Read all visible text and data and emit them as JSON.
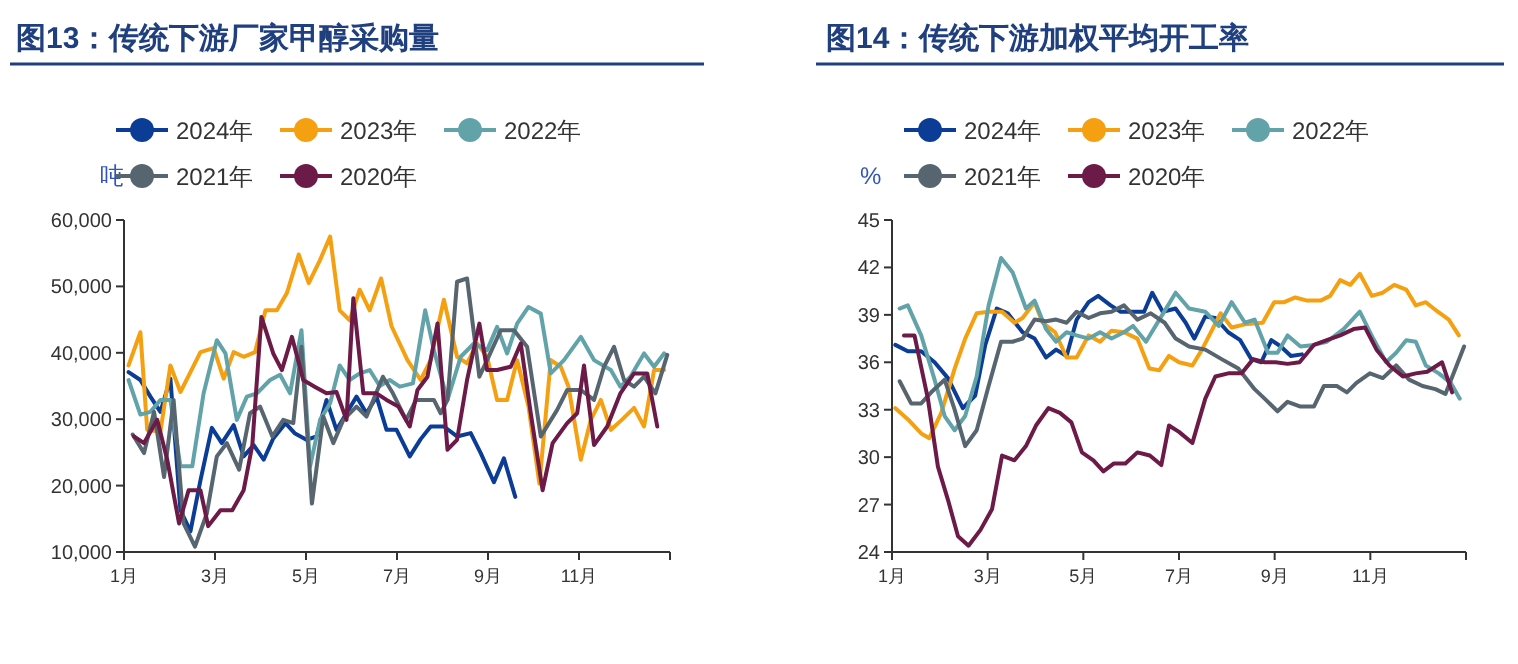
{
  "chart_data": [
    {
      "type": "line",
      "title": "图13：传统下游厂家甲醇采购量",
      "ylabel": "吨",
      "legend": "top",
      "grid": false,
      "xlim": [
        1,
        13
      ],
      "xticks": [
        {
          "value": 1,
          "label": "1月"
        },
        {
          "value": 3,
          "label": "3月"
        },
        {
          "value": 5,
          "label": "5月"
        },
        {
          "value": 7,
          "label": "7月"
        },
        {
          "value": 9,
          "label": "9月"
        },
        {
          "value": 11,
          "label": "11月"
        },
        {
          "value": 13,
          "label": null
        }
      ],
      "ylim": [
        10000,
        60000
      ],
      "yticks": [
        {
          "value": 10000,
          "label": "10,000"
        },
        {
          "value": 20000,
          "label": "20,000"
        },
        {
          "value": 30000,
          "label": "30,000"
        },
        {
          "value": 40000,
          "label": "40,000"
        },
        {
          "value": 50000,
          "label": "50,000"
        },
        {
          "value": 60000,
          "label": "60,000"
        }
      ],
      "series": [
        {
          "name": "2024年",
          "color": "#0b3d96",
          "x": [
            1.1,
            1.36,
            1.58,
            1.8,
            2.02,
            2.24,
            2.46,
            2.68,
            2.93,
            3.15,
            3.41,
            3.63,
            3.85,
            4.07,
            4.28,
            4.55,
            4.75,
            5.01,
            5.23,
            5.45,
            5.67,
            5.89,
            6.11,
            6.33,
            6.55,
            6.77,
            6.99,
            7.28,
            7.52,
            7.74,
            8.03,
            8.32,
            8.62,
            8.84,
            9.13,
            9.35,
            9.6
          ],
          "values": [
            37100,
            35900,
            33400,
            31100,
            36100,
            16300,
            13100,
            20800,
            28700,
            26400,
            29100,
            24400,
            26100,
            23900,
            27100,
            29400,
            27900,
            26900,
            27400,
            32900,
            28400,
            30900,
            33400,
            30900,
            33400,
            28400,
            28400,
            24400,
            27000,
            28900,
            28900,
            27400,
            27900,
            24900,
            20500,
            24100,
            18300
          ]
        },
        {
          "name": "2023年",
          "color": "#f5a011",
          "x": [
            1.1,
            1.36,
            1.51,
            1.8,
            2.02,
            2.24,
            2.46,
            2.68,
            2.97,
            3.19,
            3.41,
            3.63,
            3.88,
            4.11,
            4.36,
            4.58,
            4.84,
            5.06,
            5.31,
            5.53,
            5.74,
            5.96,
            6.18,
            6.4,
            6.65,
            6.88,
            7.23,
            7.52,
            7.74,
            8.03,
            8.32,
            8.54,
            8.76,
            8.98,
            9.2,
            9.42,
            9.64,
            9.89,
            10.13,
            10.38,
            10.6,
            10.77,
            11.04,
            11.26,
            11.48,
            11.7,
            11.94,
            12.21,
            12.43,
            12.65,
            12.87
          ],
          "values": [
            38100,
            43100,
            28400,
            28100,
            38100,
            34100,
            37100,
            40100,
            40700,
            36100,
            40100,
            39400,
            40100,
            46400,
            46400,
            49000,
            54800,
            50500,
            54000,
            57500,
            46400,
            44900,
            49500,
            46400,
            51200,
            44000,
            38900,
            35900,
            38900,
            48000,
            39400,
            38400,
            41400,
            39400,
            32900,
            32900,
            38900,
            31900,
            20300,
            38900,
            37900,
            34900,
            23900,
            29900,
            32900,
            28400,
            29900,
            31700,
            28900,
            37400,
            37400
          ]
        },
        {
          "name": "2022年",
          "color": "#62a3aa",
          "x": [
            1.1,
            1.36,
            1.58,
            1.8,
            2.02,
            2.24,
            2.5,
            2.75,
            3.04,
            3.23,
            3.48,
            3.7,
            3.92,
            4.21,
            4.43,
            4.65,
            4.9,
            5.09,
            5.31,
            5.53,
            5.74,
            5.96,
            6.18,
            6.4,
            6.62,
            6.84,
            7.06,
            7.35,
            7.62,
            7.81,
            8.11,
            8.4,
            8.69,
            8.98,
            9.2,
            9.42,
            9.64,
            9.89,
            10.16,
            10.38,
            10.67,
            11.04,
            11.33,
            11.7,
            11.91,
            12.13,
            12.43,
            12.65,
            12.87
          ],
          "values": [
            35900,
            30700,
            31100,
            32900,
            32900,
            22900,
            22900,
            33900,
            41900,
            39900,
            29900,
            33400,
            33900,
            35900,
            36700,
            33900,
            43400,
            22900,
            29900,
            32400,
            38100,
            35900,
            36900,
            37400,
            35000,
            35900,
            34900,
            35400,
            46400,
            40400,
            32900,
            39400,
            41400,
            40400,
            43900,
            39900,
            44400,
            46900,
            45900,
            36900,
            38900,
            42400,
            38900,
            37400,
            34900,
            36400,
            39900,
            37900,
            39900
          ]
        },
        {
          "name": "2021年",
          "color": "#56656f",
          "x": [
            1.19,
            1.44,
            1.66,
            1.88,
            2.09,
            2.31,
            2.56,
            2.82,
            3.04,
            3.26,
            3.53,
            3.77,
            3.99,
            4.26,
            4.5,
            4.72,
            4.9,
            5.13,
            5.38,
            5.6,
            5.82,
            6.11,
            6.33,
            6.69,
            6.91,
            7.2,
            7.42,
            7.52,
            7.81,
            7.96,
            8.11,
            8.32,
            8.54,
            8.81,
            8.98,
            9.28,
            9.57,
            9.86,
            10.16,
            10.52,
            10.74,
            11.04,
            11.33,
            11.55,
            11.77,
            11.99,
            12.21,
            12.43,
            12.68,
            12.94
          ],
          "values": [
            27700,
            24900,
            31100,
            21300,
            32900,
            14300,
            10800,
            15800,
            24400,
            26400,
            22400,
            30900,
            31900,
            27400,
            29900,
            29400,
            40900,
            17300,
            30400,
            26400,
            29900,
            31900,
            30400,
            36400,
            33900,
            29900,
            32900,
            32900,
            32900,
            30900,
            32900,
            50700,
            51200,
            36400,
            38900,
            43400,
            43400,
            40900,
            27400,
            31400,
            34400,
            34400,
            32900,
            37900,
            40900,
            35900,
            34900,
            36400,
            33900,
            39700
          ]
        },
        {
          "name": "2020年",
          "color": "#6c1a47",
          "x": [
            1.22,
            1.44,
            1.73,
            1.95,
            2.21,
            2.42,
            2.68,
            2.85,
            3.12,
            3.38,
            3.63,
            3.82,
            4.02,
            4.28,
            4.47,
            4.69,
            4.94,
            5.19,
            5.45,
            5.67,
            5.89,
            6.04,
            6.26,
            6.55,
            6.77,
            7.03,
            7.28,
            7.45,
            7.67,
            7.89,
            8.11,
            8.32,
            8.54,
            8.81,
            8.98,
            9.2,
            9.5,
            9.72,
            9.94,
            10.2,
            10.42,
            10.74,
            10.96,
            11.11,
            11.33,
            11.62,
            11.91,
            12.21,
            12.5,
            12.72
          ],
          "values": [
            27400,
            26400,
            29900,
            23900,
            14300,
            19300,
            19300,
            13900,
            16300,
            16300,
            19300,
            26100,
            45400,
            39900,
            37400,
            42400,
            35900,
            34900,
            33900,
            34100,
            29900,
            48200,
            33900,
            33900,
            32900,
            31900,
            28900,
            34400,
            36400,
            44400,
            25400,
            26900,
            35900,
            44400,
            37400,
            37400,
            37900,
            41400,
            30900,
            19300,
            26400,
            29400,
            30900,
            38100,
            26100,
            28900,
            33900,
            36900,
            36900,
            28900
          ]
        }
      ]
    },
    {
      "type": "line",
      "title": "图14：传统下游加权平均开工率",
      "ylabel": "%",
      "legend": "top",
      "grid": false,
      "xlim": [
        1,
        13
      ],
      "xticks": [
        {
          "value": 1,
          "label": "1月"
        },
        {
          "value": 3,
          "label": "3月"
        },
        {
          "value": 5,
          "label": "5月"
        },
        {
          "value": 7,
          "label": "7月"
        },
        {
          "value": 9,
          "label": "9月"
        },
        {
          "value": 11,
          "label": "11月"
        },
        {
          "value": 13,
          "label": null
        }
      ],
      "ylim": [
        24,
        45
      ],
      "yticks": [
        24,
        27,
        30,
        33,
        36,
        39,
        42,
        45
      ],
      "series": [
        {
          "name": "2024年",
          "color": "#0b3d96",
          "x": [
            1.07,
            1.33,
            1.61,
            1.89,
            2.17,
            2.48,
            2.74,
            2.95,
            3.19,
            3.42,
            3.73,
            3.98,
            4.22,
            4.43,
            4.65,
            4.86,
            5.11,
            5.31,
            5.57,
            5.78,
            6.06,
            6.27,
            6.44,
            6.66,
            6.93,
            7.14,
            7.32,
            7.55,
            7.76,
            8.03,
            8.28,
            8.51,
            8.72,
            8.93,
            9.13,
            9.34,
            9.57
          ],
          "values": [
            37.1,
            36.7,
            36.7,
            36.0,
            35.0,
            33.1,
            33.9,
            37.1,
            39.4,
            39.1,
            37.9,
            37.5,
            36.3,
            36.8,
            36.4,
            38.7,
            39.8,
            40.2,
            39.6,
            39.2,
            39.2,
            39.2,
            40.4,
            39.2,
            39.4,
            38.5,
            37.5,
            38.9,
            38.8,
            37.9,
            37.4,
            36.2,
            36.0,
            37.4,
            37.0,
            36.4,
            36.5
          ]
        },
        {
          "name": "2023年",
          "color": "#f5a011",
          "x": [
            1.07,
            1.33,
            1.61,
            1.78,
            2.03,
            2.31,
            2.53,
            2.77,
            3.02,
            3.3,
            3.56,
            3.73,
            3.98,
            4.15,
            4.41,
            4.65,
            4.86,
            5.11,
            5.35,
            5.59,
            5.85,
            6.13,
            6.38,
            6.59,
            6.79,
            7.0,
            7.28,
            7.48,
            7.87,
            8.1,
            8.38,
            8.75,
            8.99,
            9.2,
            9.43,
            9.68,
            9.96,
            10.16,
            10.37,
            10.58,
            10.78,
            11.03,
            11.26,
            11.5,
            11.75,
            11.95,
            12.16,
            12.41,
            12.64,
            12.85
          ],
          "values": [
            33.1,
            32.4,
            31.5,
            31.2,
            32.8,
            35.6,
            37.5,
            39.1,
            39.2,
            39.2,
            38.5,
            38.8,
            39.8,
            38.5,
            37.9,
            36.3,
            36.3,
            37.7,
            37.3,
            38.0,
            37.9,
            37.5,
            35.6,
            35.5,
            36.4,
            36.0,
            35.8,
            36.8,
            39.1,
            38.2,
            38.4,
            38.5,
            39.8,
            39.8,
            40.1,
            39.9,
            39.9,
            40.2,
            41.2,
            40.9,
            41.6,
            40.2,
            40.4,
            40.9,
            40.6,
            39.6,
            39.8,
            39.2,
            38.7,
            37.7
          ]
        },
        {
          "name": "2022年",
          "color": "#62a3aa",
          "x": [
            1.16,
            1.33,
            1.61,
            1.89,
            2.1,
            2.31,
            2.53,
            2.77,
            3.02,
            3.28,
            3.52,
            3.8,
            3.98,
            4.22,
            4.43,
            4.65,
            4.86,
            5.11,
            5.35,
            5.59,
            5.85,
            6.04,
            6.31,
            6.59,
            6.93,
            7.21,
            7.55,
            7.83,
            8.1,
            8.38,
            8.58,
            8.86,
            9.06,
            9.27,
            9.54,
            9.82,
            10.09,
            10.44,
            10.78,
            11.06,
            11.33,
            11.54,
            11.75,
            11.95,
            12.16,
            12.43,
            12.68,
            12.87
          ],
          "values": [
            39.4,
            39.6,
            37.7,
            34.9,
            32.6,
            31.7,
            32.6,
            35.1,
            39.6,
            42.6,
            41.7,
            39.4,
            39.9,
            38.1,
            37.3,
            37.9,
            37.7,
            37.5,
            37.9,
            37.5,
            37.9,
            38.3,
            37.3,
            38.7,
            40.4,
            39.4,
            39.2,
            38.3,
            39.8,
            38.5,
            38.7,
            36.6,
            36.6,
            37.7,
            37.0,
            37.1,
            37.3,
            38.1,
            39.2,
            37.5,
            36.0,
            36.6,
            37.4,
            37.3,
            35.8,
            35.3,
            34.7,
            33.7
          ]
        },
        {
          "name": "2021年",
          "color": "#56656f",
          "x": [
            1.16,
            1.4,
            1.61,
            1.82,
            2.1,
            2.31,
            2.53,
            2.77,
            3.02,
            3.28,
            3.52,
            3.73,
            3.98,
            4.22,
            4.43,
            4.65,
            4.86,
            5.11,
            5.35,
            5.59,
            5.85,
            6.13,
            6.41,
            6.7,
            6.93,
            7.21,
            7.55,
            7.89,
            8.24,
            8.58,
            8.79,
            9.06,
            9.27,
            9.54,
            9.82,
            10.03,
            10.3,
            10.51,
            10.71,
            10.99,
            11.26,
            11.54,
            11.81,
            12.09,
            12.36,
            12.57,
            12.78,
            12.96
          ],
          "values": [
            34.8,
            33.4,
            33.4,
            34.1,
            34.9,
            33.0,
            30.7,
            31.7,
            34.5,
            37.3,
            37.3,
            37.5,
            38.7,
            38.6,
            38.7,
            38.5,
            39.2,
            38.8,
            39.1,
            39.2,
            39.6,
            38.7,
            39.1,
            38.5,
            37.5,
            37.0,
            36.8,
            36.2,
            35.6,
            34.3,
            33.7,
            32.9,
            33.5,
            33.2,
            33.2,
            34.5,
            34.5,
            34.1,
            34.7,
            35.3,
            35.0,
            35.8,
            34.9,
            34.5,
            34.3,
            34.0,
            35.6,
            37.0
          ]
        },
        {
          "name": "2020年",
          "color": "#6c1a47",
          "x": [
            1.25,
            1.47,
            1.75,
            1.96,
            2.17,
            2.38,
            2.6,
            2.85,
            3.09,
            3.3,
            3.56,
            3.8,
            4.01,
            4.27,
            4.51,
            4.75,
            4.97,
            5.21,
            5.42,
            5.64,
            5.88,
            6.13,
            6.39,
            6.63,
            6.79,
            7.0,
            7.28,
            7.55,
            7.76,
            8.03,
            8.31,
            8.55,
            8.79,
            9.02,
            9.27,
            9.52,
            9.82,
            10.09,
            10.37,
            10.65,
            10.89,
            11.13,
            11.4,
            11.68,
            11.95,
            12.19,
            12.5,
            12.71
          ],
          "values": [
            37.7,
            37.7,
            33.7,
            29.4,
            27.3,
            25.0,
            24.4,
            25.4,
            26.7,
            30.1,
            29.8,
            30.7,
            32.0,
            33.1,
            32.8,
            32.2,
            30.3,
            29.8,
            29.1,
            29.6,
            29.6,
            30.3,
            30.1,
            29.5,
            32.0,
            31.6,
            30.9,
            33.7,
            35.1,
            35.3,
            35.3,
            36.2,
            36.0,
            36.0,
            35.9,
            36.0,
            37.1,
            37.4,
            37.7,
            38.1,
            38.2,
            36.8,
            35.8,
            35.1,
            35.3,
            35.4,
            36.0,
            34.1
          ]
        }
      ]
    }
  ]
}
